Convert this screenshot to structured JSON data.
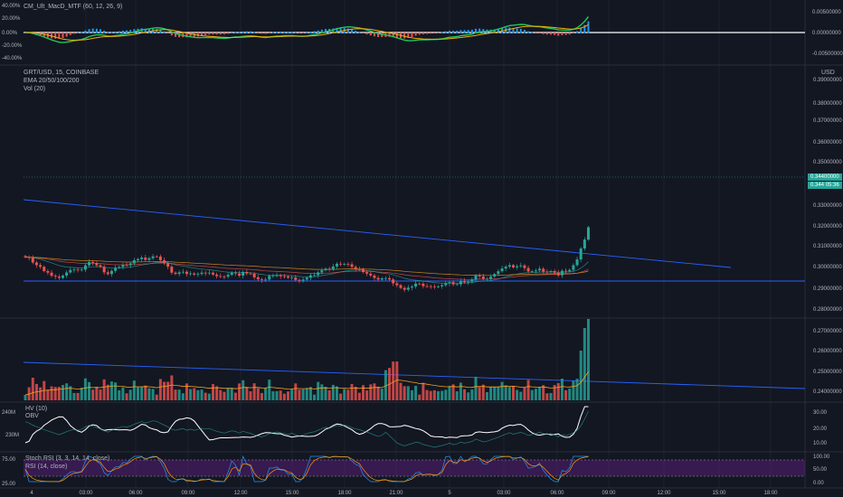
{
  "panes": {
    "macd": {
      "title": "CM_Ult_MacD_MTF (60, 12, 26, 9)",
      "left_ticks": [
        "40.00%",
        "20.00%",
        "0.00%",
        "-20.00%",
        "-40.00%"
      ],
      "right_ticks": [
        "0.00500000",
        "0.00000000",
        "-0.00500000"
      ]
    },
    "price": {
      "symbol": "GRT/USD, 15, COINBASE",
      "ema_label": "EMA 20/50/100/200",
      "vol_label": "Vol (20)",
      "currency": "USD",
      "right_ticks": [
        "0.39000000",
        "0.38000000",
        "0.37000000",
        "0.36000000",
        "0.35000000",
        "0.33000000",
        "0.32000000",
        "0.31000000",
        "0.30000000",
        "0.29000000",
        "0.28000000",
        "0.27000000",
        "0.26000000",
        "0.25000000",
        "0.24000000"
      ],
      "last_price": "0.34400000",
      "last_price_short": "0.344",
      "countdown": "05:36"
    },
    "hv": {
      "title": "HV (10)",
      "subtitle": "OBV",
      "left_ticks": [
        "240M",
        "230M"
      ],
      "right_ticks": [
        "30.00",
        "20.00",
        "10.00"
      ]
    },
    "stoch": {
      "title": "Stoch RSI (3, 3, 14, 14, close)",
      "subtitle": "RSI (14, close)",
      "left_ticks": [
        "75.00",
        "25.00"
      ],
      "right_ticks": [
        "100.00",
        "50.00",
        "0.00"
      ]
    }
  },
  "time_axis": [
    "4",
    "03:00",
    "06:00",
    "09:00",
    "12:00",
    "15:00",
    "18:00",
    "21:00",
    "5",
    "03:00",
    "06:00",
    "09:00",
    "12:00",
    "15:00",
    "18:00"
  ],
  "colors": {
    "background": "#131722",
    "grid": "#1e222d",
    "up": "#26a69a",
    "down": "#ef5350",
    "trendline": "#2962ff",
    "ema": "#f7a21b",
    "macd_fast": "#22c55e",
    "macd_slow": "#eab308",
    "stoch_fill": "#7b1fa2"
  },
  "chart_data": {
    "type": "line",
    "title": "GRT/USD, 15, COINBASE",
    "ylim": [
      0.24,
      0.39
    ],
    "series": [
      {
        "name": "GRT/USD close",
        "values": [
          0.3175,
          0.3168,
          0.3128,
          0.3105,
          0.309,
          0.3052,
          0.3038,
          0.3011,
          0.3003,
          0.2992,
          0.3012,
          0.304,
          0.3062,
          0.3065,
          0.3059,
          0.3065,
          0.3103,
          0.3132,
          0.3124,
          0.3104,
          0.309,
          0.3041,
          0.3026,
          0.3054,
          0.3082,
          0.3088,
          0.3106,
          0.3104,
          0.312,
          0.3148,
          0.3158,
          0.3172,
          0.3151,
          0.3166,
          0.3182,
          0.3181,
          0.3148,
          0.3121,
          0.3091,
          0.3038,
          0.3027,
          0.3041,
          0.3046,
          0.3027,
          0.3031,
          0.3021,
          0.3027,
          0.3038,
          0.3034,
          0.3038,
          0.3021,
          0.3008,
          0.3004,
          0.3003,
          0.3019,
          0.3038,
          0.3031,
          0.3012,
          0.3044,
          0.3031,
          0.3028,
          0.2997,
          0.2979,
          0.2973,
          0.2977,
          0.3011,
          0.3011,
          0.3014,
          0.3006,
          0.3005,
          0.2994,
          0.2995,
          0.2973,
          0.2968,
          0.2977,
          0.2993,
          0.3015,
          0.3016,
          0.304,
          0.3059,
          0.3073,
          0.3067,
          0.3093,
          0.3117,
          0.3113,
          0.3114,
          0.3112,
          0.3089,
          0.3072,
          0.3071,
          0.3043,
          0.3029,
          0.3013,
          0.2991,
          0.2977,
          0.2988,
          0.2989,
          0.2978,
          0.2944,
          0.2927,
          0.2903,
          0.2887,
          0.2906,
          0.2915,
          0.2941,
          0.294,
          0.2919,
          0.2918,
          0.2917,
          0.2911,
          0.2917,
          0.2927,
          0.2943,
          0.2954,
          0.2935,
          0.2935,
          0.2965,
          0.2953,
          0.2958,
          0.2975,
          0.3015,
          0.3005,
          0.2984,
          0.2984,
          0.3003,
          0.3026,
          0.3051,
          0.3075,
          0.3091,
          0.3105,
          0.3085,
          0.3095,
          0.3102,
          0.3079,
          0.3049,
          0.305,
          0.3058,
          0.3073,
          0.3048,
          0.3046,
          0.3052,
          0.3038,
          0.3015,
          0.3055,
          0.3049,
          0.3063,
          0.3104,
          0.3155,
          0.3252,
          0.3331,
          0.344
        ]
      }
    ]
  }
}
